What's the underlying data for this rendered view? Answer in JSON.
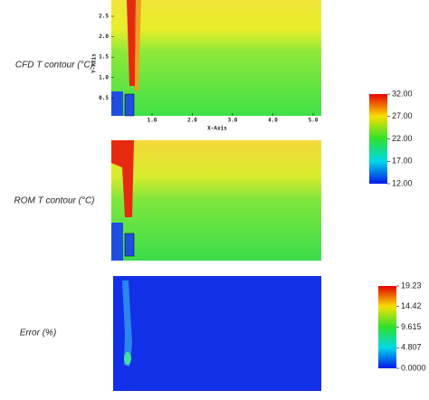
{
  "panels": [
    {
      "label": "CFD T contour (°C)"
    },
    {
      "label": "ROM T contour (°C)"
    },
    {
      "label": "Error (%)"
    }
  ],
  "axes": {
    "x_label": "X-Axis",
    "y_label": "Y-Axis",
    "x_ticks": [
      "1.0",
      "2.0",
      "3.0",
      "4.0",
      "5.0"
    ],
    "y_ticks": [
      "2.5",
      "2.0",
      "1.5",
      "1.0",
      "0.5"
    ]
  },
  "colorbars": [
    {
      "ticks": [
        "32.00",
        "27.00",
        "22.00",
        "17.00",
        "12.00"
      ]
    },
    {
      "ticks": [
        "19.23",
        "14.42",
        "9.615",
        "4.807",
        "0.0000"
      ]
    }
  ]
}
